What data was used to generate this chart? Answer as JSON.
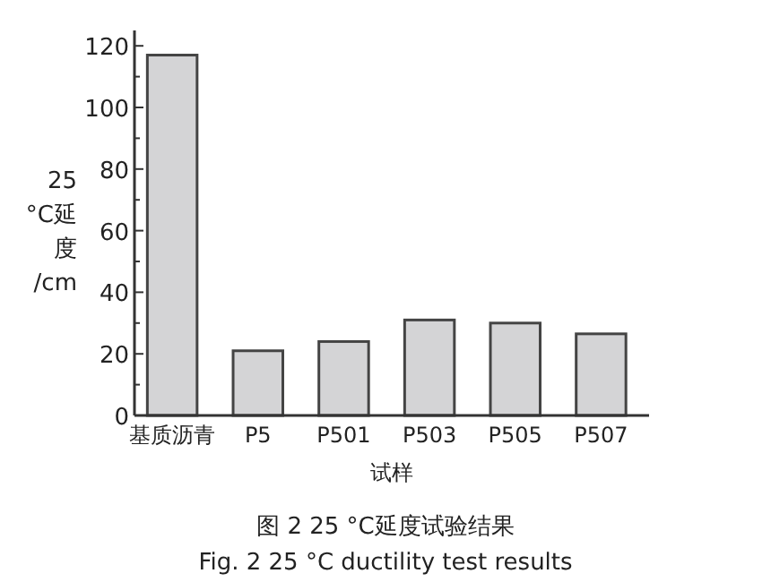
{
  "chart_data": {
    "type": "bar",
    "title": "图 2 25 °C延度试验结果",
    "subtitle": "Fig. 2 25 °C ductility test results",
    "xlabel": "试样",
    "ylabel": "25 °C延度 /cm",
    "categories": [
      "基质沥青",
      "P5",
      "P501",
      "P503",
      "P505",
      "P507"
    ],
    "values": [
      117,
      21,
      24,
      31,
      30,
      26.5
    ],
    "color": "#d4d4d6",
    "ylim": [
      0,
      125
    ],
    "yticks": [
      0,
      20,
      40,
      60,
      80,
      100,
      120
    ]
  }
}
